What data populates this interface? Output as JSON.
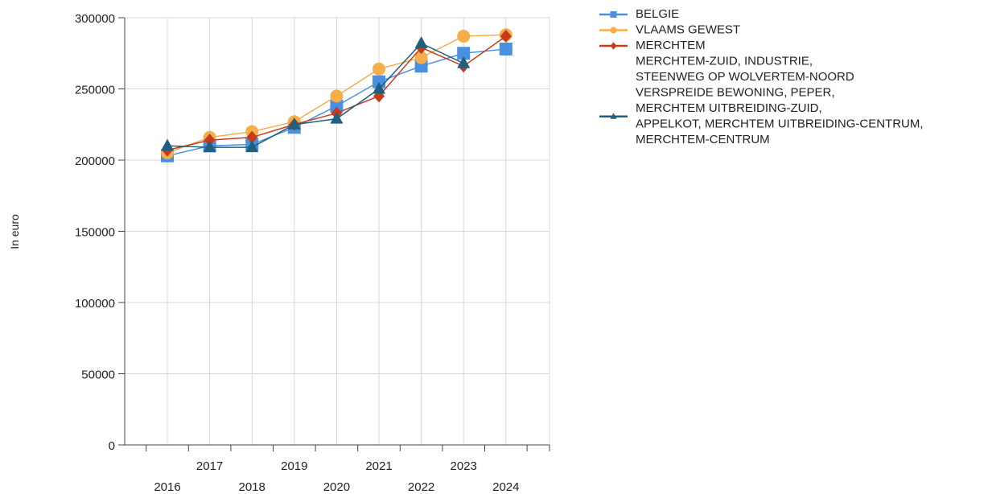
{
  "chart_data": {
    "type": "line",
    "title": "",
    "xlabel": "",
    "ylabel": "In euro",
    "x": [
      "2016",
      "2017",
      "2018",
      "2019",
      "2020",
      "2021",
      "2022",
      "2023",
      "2024"
    ],
    "ylim": [
      0,
      300000
    ],
    "yticks": [
      "0",
      "50000",
      "100000",
      "150000",
      "200000",
      "250000",
      "300000"
    ],
    "grid": true,
    "legend_position": "right",
    "series": [
      {
        "name": "BELGIE",
        "color": "#4a90e2",
        "marker": "square",
        "values": [
          203000,
          210000,
          211000,
          223000,
          238000,
          255000,
          266000,
          275000,
          278000
        ]
      },
      {
        "name": "VLAAMS GEWEST",
        "color": "#f5ae4a",
        "marker": "circle",
        "values": [
          205000,
          216000,
          220000,
          227000,
          245000,
          264000,
          272000,
          287000,
          288000
        ]
      },
      {
        "name": "MERCHTEM",
        "color": "#c43c1c",
        "marker": "diamond",
        "values": [
          207000,
          214000,
          216000,
          225000,
          233000,
          245000,
          279000,
          266000,
          287000
        ]
      },
      {
        "name": "VERSPREIDE BEWONING, PEPER, MERCHTEM UITBREIDING-ZUID, APPELKOT, MERCHTEM UITBREIDING-CENTRUM, MERCHTEM-CENTRUM",
        "color": "#1f5f80",
        "marker": "triangle",
        "values": [
          210000,
          209000,
          209000,
          225000,
          229000,
          250000,
          282000,
          268000,
          null
        ]
      }
    ],
    "legend": [
      {
        "label": "BELGIE",
        "series": 0,
        "lines": [
          "BELGIE"
        ]
      },
      {
        "label": "VLAAMS GEWEST",
        "series": 1,
        "lines": [
          "VLAAMS GEWEST"
        ]
      },
      {
        "label": "MERCHTEM",
        "series": 2,
        "lines": [
          "MERCHTEM"
        ]
      },
      {
        "label": "MERCHTEM-ZUID, INDUSTRIE, STEENWEG OP WOLVERTEM-NOORD",
        "series": null,
        "lines": [
          "MERCHTEM-ZUID, INDUSTRIE,",
          "STEENWEG OP WOLVERTEM-NOORD"
        ]
      },
      {
        "label": "VERSPREIDE BEWONING, PEPER, MERCHTEM UITBREIDING-ZUID, APPELKOT, MERCHTEM UITBREIDING-CENTRUM, MERCHTEM-CENTRUM",
        "series": 3,
        "lines": [
          "VERSPREIDE BEWONING, PEPER,",
          "MERCHTEM UITBREIDING-ZUID,",
          "APPELKOT, MERCHTEM UITBREIDING-CENTRUM,",
          "MERCHTEM-CENTRUM"
        ]
      }
    ]
  }
}
